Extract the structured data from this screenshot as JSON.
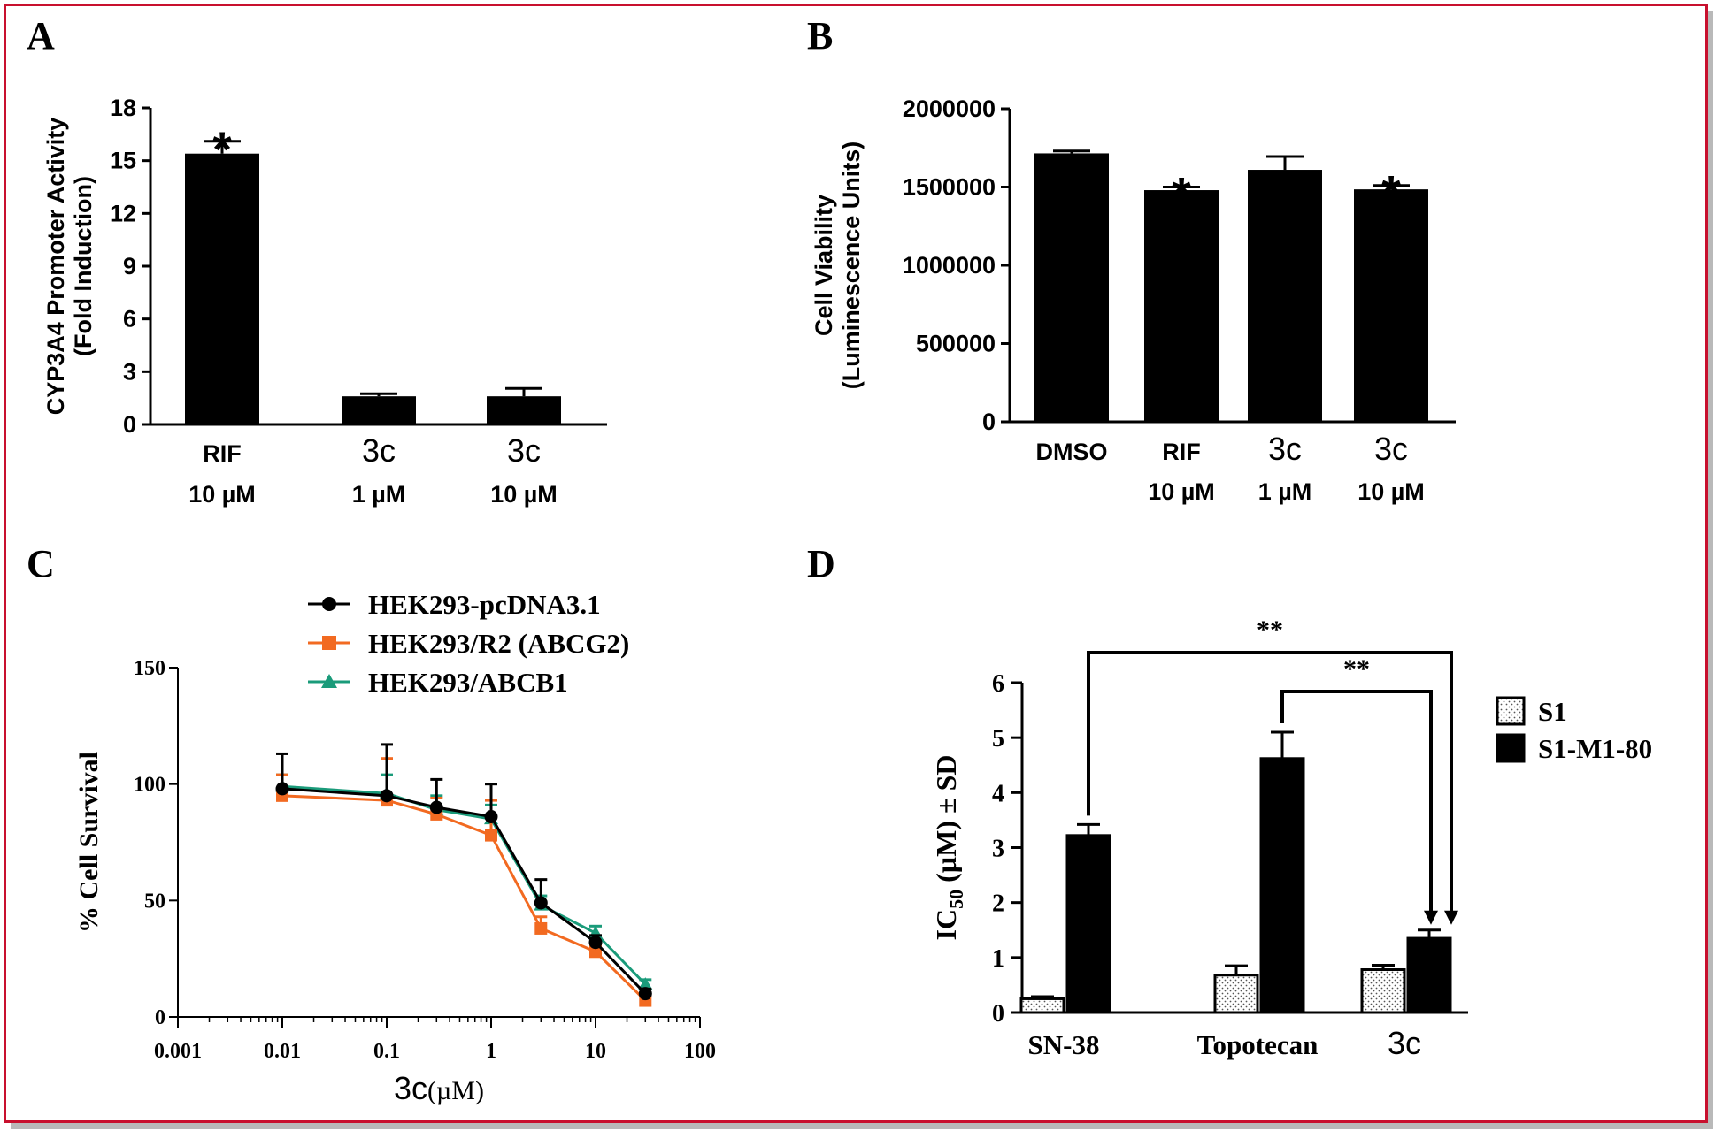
{
  "colors": {
    "frame": "#c8102e",
    "bar": "#000000",
    "black": "#000000",
    "orange": "#f26a21",
    "green": "#1a9b7a"
  },
  "chart_data": [
    {
      "panel": "A",
      "type": "bar",
      "ylabel": [
        "CYP3A4 Promoter Activity",
        "(Fold Induction)"
      ],
      "ylim": [
        0,
        18
      ],
      "yticks": [
        0,
        3,
        6,
        9,
        12,
        15,
        18
      ],
      "categories": [
        [
          "RIF",
          "10 µM"
        ],
        [
          "3c",
          "1 µM"
        ],
        [
          "3c",
          "10 µM"
        ]
      ],
      "values": [
        15.4,
        1.6,
        1.6
      ],
      "errors": [
        0.7,
        0.15,
        0.45
      ],
      "annotations": [
        "*",
        "",
        ""
      ]
    },
    {
      "panel": "B",
      "type": "bar",
      "ylabel": [
        "Cell Viability",
        "(Luminescence Units)"
      ],
      "ylim": [
        0,
        2000000
      ],
      "yticks": [
        0,
        500000,
        1000000,
        1500000,
        2000000
      ],
      "categories": [
        [
          "DMSO",
          ""
        ],
        [
          "RIF",
          "10 µM"
        ],
        [
          "3c",
          "1 µM"
        ],
        [
          "3c",
          "10 µM"
        ]
      ],
      "values": [
        1715000,
        1480000,
        1610000,
        1485000
      ],
      "errors": [
        15000,
        20000,
        85000,
        25000
      ],
      "annotations": [
        "",
        "*",
        "",
        "*"
      ]
    },
    {
      "panel": "C",
      "type": "line",
      "xscale": "log",
      "xlabel": "3c(µM)",
      "ylabel": "% Cell Survival",
      "xlim": [
        0.001,
        100
      ],
      "ylim": [
        0,
        150
      ],
      "xticks": [
        "0.001",
        "0.01",
        "0.1",
        "1",
        "10",
        "100"
      ],
      "yticks": [
        0,
        50,
        100,
        150
      ],
      "x": [
        0.01,
        0.1,
        0.3,
        1,
        3,
        10,
        30
      ],
      "series": [
        {
          "name": "HEK293-pcDNA3.1",
          "marker": "circle",
          "values": [
            98,
            95,
            90,
            86,
            49,
            32,
            10
          ],
          "errors": [
            15,
            22,
            12,
            14,
            10,
            3,
            2
          ]
        },
        {
          "name": "HEK293/R2 (ABCG2)",
          "marker": "square",
          "values": [
            95,
            93,
            87,
            78,
            38,
            28,
            7
          ],
          "errors": [
            9,
            18,
            7,
            15,
            5,
            3,
            2
          ]
        },
        {
          "name": "HEK293/ABCB1",
          "marker": "triangle",
          "values": [
            99,
            96,
            89,
            85,
            48,
            36,
            14
          ],
          "errors": [
            5,
            8,
            6,
            6,
            4,
            3,
            2
          ]
        }
      ],
      "legend": "top"
    },
    {
      "panel": "D",
      "type": "bar",
      "ylabel": "IC50 (µM) ± SD",
      "ylim": [
        0,
        6
      ],
      "yticks": [
        0,
        1,
        2,
        3,
        4,
        5,
        6
      ],
      "categories": [
        "SN-38",
        "Topotecan",
        "3c"
      ],
      "series": [
        {
          "name": "S1",
          "pattern": "dotted",
          "values": [
            0.25,
            0.68,
            0.78
          ],
          "errors": [
            0.04,
            0.17,
            0.08
          ]
        },
        {
          "name": "S1-M1-80",
          "pattern": "solid",
          "values": [
            3.22,
            4.62,
            1.35
          ],
          "errors": [
            0.2,
            0.48,
            0.15
          ]
        }
      ],
      "significance": [
        {
          "label": "**",
          "from": "SN-38",
          "to": "3c"
        },
        {
          "label": "**",
          "from": "Topotecan",
          "to": "3c"
        }
      ],
      "legend": "right"
    }
  ]
}
